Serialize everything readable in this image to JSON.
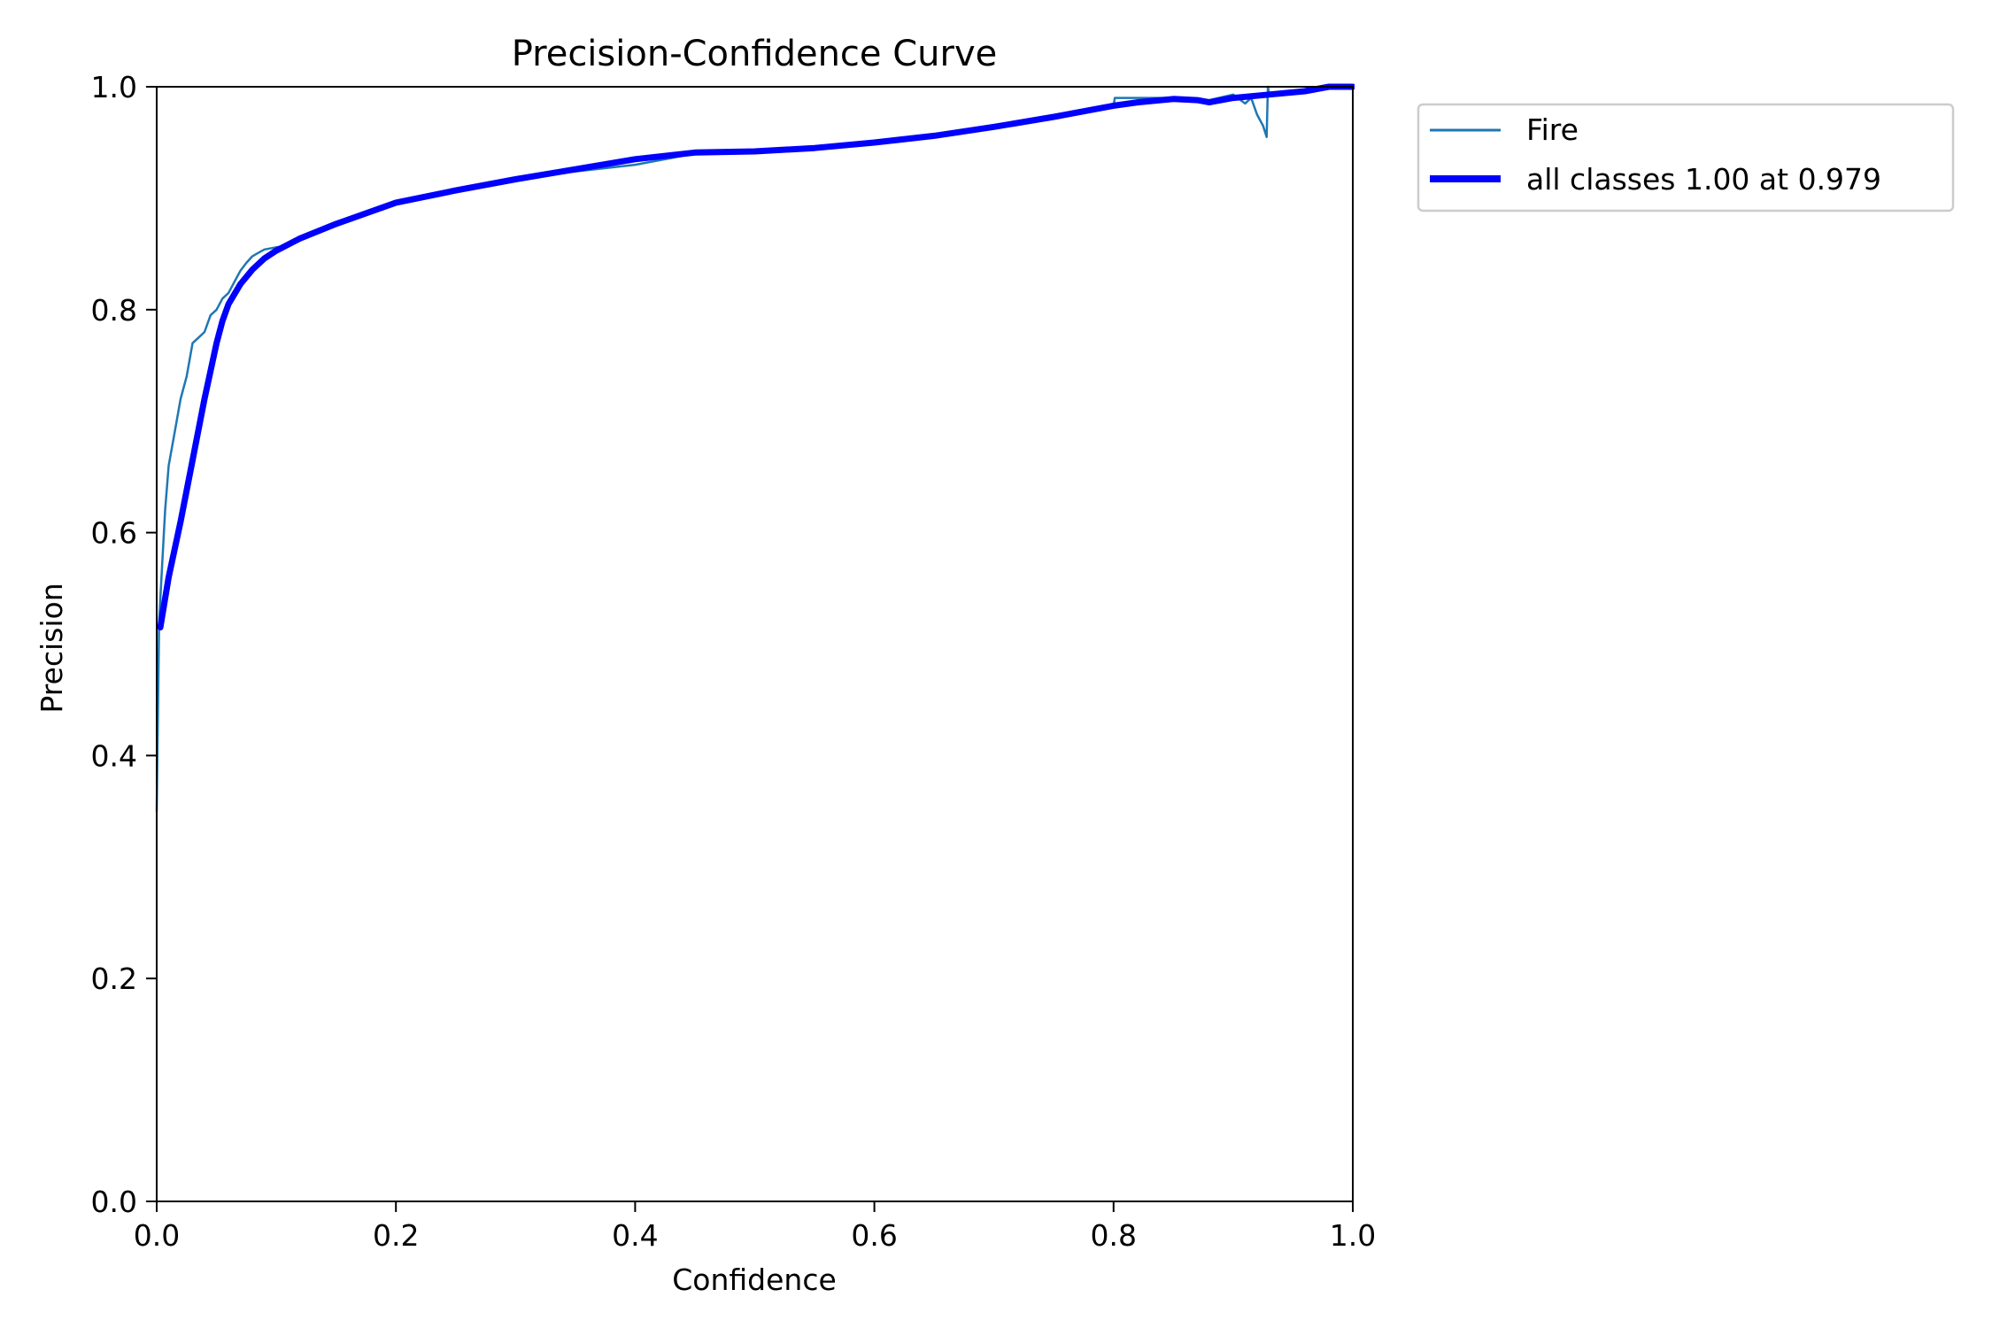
{
  "chart_data": {
    "type": "line",
    "title": "Precision-Confidence Curve",
    "xlabel": "Confidence",
    "ylabel": "Precision",
    "xlim": [
      0,
      1
    ],
    "ylim": [
      0,
      1
    ],
    "xticks": [
      "0.0",
      "0.2",
      "0.4",
      "0.6",
      "0.8",
      "1.0"
    ],
    "yticks": [
      "0.0",
      "0.2",
      "0.4",
      "0.6",
      "0.8",
      "1.0"
    ],
    "grid": false,
    "legend_position": "outside-top-right",
    "series": [
      {
        "name": "Fire",
        "color": "#1f77b4",
        "x": [
          0.0,
          0.002,
          0.004,
          0.007,
          0.01,
          0.015,
          0.02,
          0.025,
          0.03,
          0.035,
          0.04,
          0.045,
          0.05,
          0.055,
          0.06,
          0.065,
          0.07,
          0.075,
          0.08,
          0.085,
          0.09,
          0.1,
          0.11,
          0.12,
          0.13,
          0.15,
          0.2,
          0.3,
          0.4,
          0.45,
          0.5,
          0.55,
          0.6,
          0.65,
          0.7,
          0.75,
          0.8,
          0.801,
          0.82,
          0.85,
          0.88,
          0.9,
          0.91,
          0.915,
          0.92,
          0.925,
          0.928,
          0.929,
          0.93,
          0.95,
          0.97,
          0.98,
          1.0
        ],
        "y": [
          0.35,
          0.52,
          0.56,
          0.62,
          0.66,
          0.69,
          0.72,
          0.74,
          0.77,
          0.775,
          0.78,
          0.795,
          0.8,
          0.81,
          0.815,
          0.825,
          0.835,
          0.842,
          0.848,
          0.851,
          0.854,
          0.856,
          0.857,
          0.862,
          0.868,
          0.876,
          0.895,
          0.918,
          0.93,
          0.94,
          0.942,
          0.946,
          0.951,
          0.957,
          0.965,
          0.974,
          0.983,
          0.99,
          0.99,
          0.99,
          0.988,
          0.993,
          0.985,
          0.99,
          0.975,
          0.965,
          0.955,
          1.0,
          0.994,
          0.996,
          0.998,
          1.0,
          1.0
        ]
      },
      {
        "name": "all classes 1.00 at 0.979",
        "color": "#0000ff",
        "x": [
          0.003,
          0.01,
          0.02,
          0.03,
          0.04,
          0.05,
          0.055,
          0.06,
          0.07,
          0.08,
          0.09,
          0.1,
          0.12,
          0.15,
          0.2,
          0.25,
          0.3,
          0.35,
          0.4,
          0.45,
          0.5,
          0.55,
          0.6,
          0.65,
          0.7,
          0.75,
          0.78,
          0.8,
          0.82,
          0.85,
          0.87,
          0.88,
          0.9,
          0.93,
          0.96,
          0.98,
          0.99,
          1.0
        ],
        "y": [
          0.515,
          0.56,
          0.61,
          0.665,
          0.72,
          0.77,
          0.79,
          0.805,
          0.823,
          0.836,
          0.846,
          0.853,
          0.864,
          0.877,
          0.896,
          0.907,
          0.917,
          0.926,
          0.935,
          0.941,
          0.942,
          0.945,
          0.95,
          0.956,
          0.964,
          0.973,
          0.979,
          0.983,
          0.986,
          0.989,
          0.988,
          0.986,
          0.99,
          0.993,
          0.996,
          1.0,
          1.0,
          1.0
        ]
      }
    ]
  }
}
